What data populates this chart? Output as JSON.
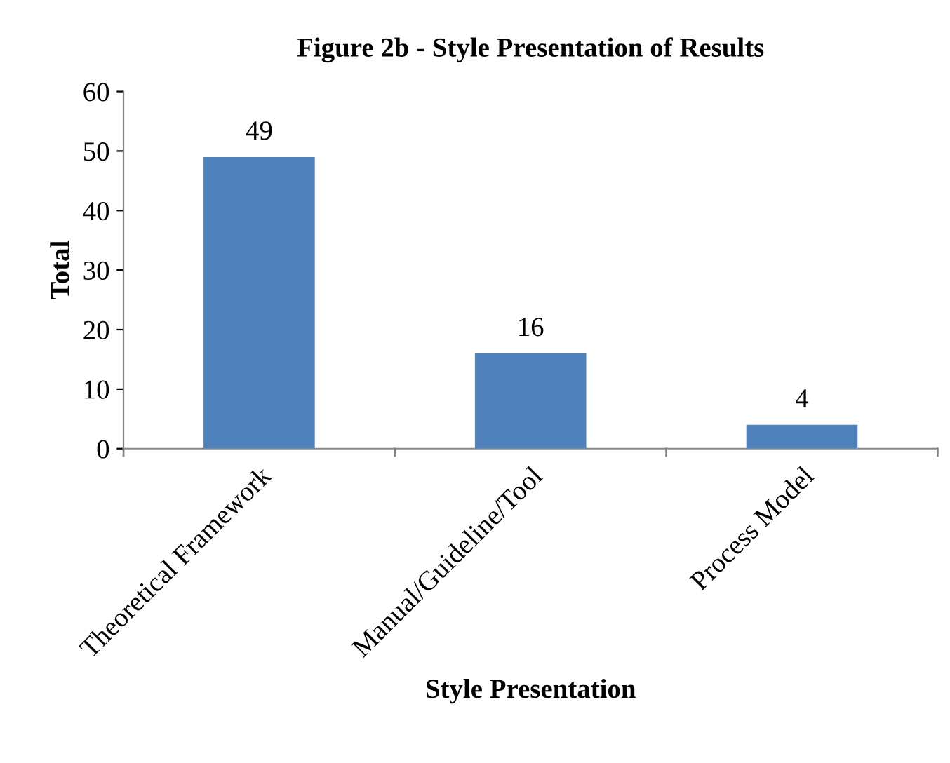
{
  "chart_data": {
    "type": "bar",
    "title": "Figure 2b - Style Presentation of Results",
    "xlabel": "Style Presentation",
    "ylabel": "Total",
    "categories": [
      "Theoretical Framework",
      "Manual/Guideline/Tool",
      "Process Model"
    ],
    "values": [
      49,
      16,
      4
    ],
    "color": "#4f81bd",
    "ylim": [
      0,
      60
    ],
    "yticks": [
      0,
      10,
      20,
      30,
      40,
      50,
      60
    ],
    "grid": false,
    "data_labels": true,
    "legend": false
  }
}
